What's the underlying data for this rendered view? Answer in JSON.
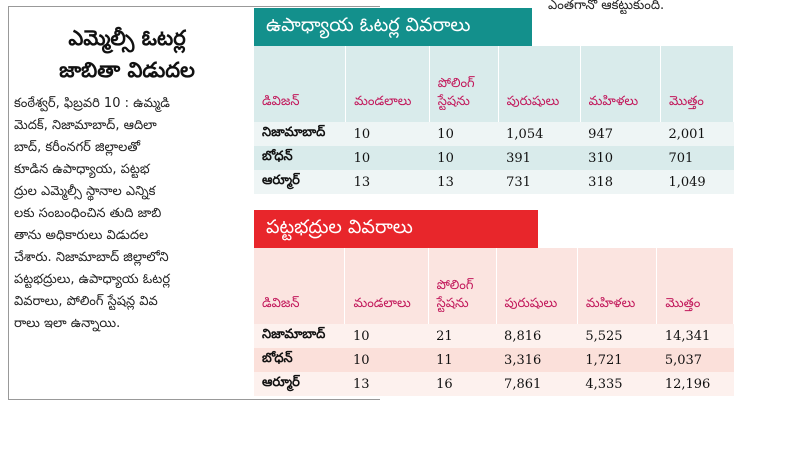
{
  "top_text": "ఎంతగానో ఆకట్టుకుంది.",
  "article": {
    "headline_line1": "ఎమ్మెల్సీ ఓటర్ల",
    "headline_line2": "జాబితా విడుదల",
    "body_lines": [
      "కంఠేశ్వర్, ఫిబ్రవరి 10 : ఉమ్మడి",
      "మెదక్, నిజామాబాద్, ఆదిలా",
      "బాద్, కరీంనగర్ జిల్లాలతో",
      "కూడిన ఉపాధ్యాయ, పట్టభ",
      "ద్రుల ఎమ్మెల్సీ స్థానాల ఎన్నిక",
      "లకు సంబంధించిన తుది జాబి",
      "తాను అధికారులు విడుదల",
      "చేశారు. నిజామాబాద్ జిల్లాలోని",
      "పట్టభద్రులు, ఉపాధ్యాయ ఓటర్ల",
      "వివరాలు, పోలింగ్ స్టేషన్ల వివ",
      "రాలు ఇలా ఉన్నాయి."
    ]
  },
  "teacher_table": {
    "title": "ఉపాధ్యాయ ఓటర్ల వివరాలు",
    "headers": [
      "డివిజన్",
      "మండలాలు",
      "పోలింగ్ స్టేషను",
      "పురుషులు",
      "మహిళలు",
      "మొత్తం"
    ],
    "rows": [
      [
        "నిజామాబాద్",
        "10",
        "10",
        "1,054",
        "947",
        "2,001"
      ],
      [
        "బోధన్",
        "10",
        "10",
        "391",
        "310",
        "701"
      ],
      [
        "ఆర్మూర్",
        "13",
        "13",
        "731",
        "318",
        "1,049"
      ]
    ]
  },
  "graduate_table": {
    "title": "పట్టభద్రుల వివరాలు",
    "headers": [
      "డివిజన్",
      "మండలాలు",
      "పోలింగ్ స్టేషను",
      "పురుషులు",
      "మహిళలు",
      "మొత్తం"
    ],
    "rows": [
      [
        "నిజామాబాద్",
        "10",
        "21",
        "8,816",
        "5,525",
        "14,341"
      ],
      [
        "బోధన్",
        "10",
        "11",
        "3,316",
        "1,721",
        "5,037"
      ],
      [
        "ఆర్మూర్",
        "13",
        "16",
        "7,861",
        "4,335",
        "12,196"
      ]
    ]
  },
  "colors": {
    "teal_banner": "#13908c",
    "red_banner": "#e8262b",
    "header_text": "#c2185b"
  }
}
